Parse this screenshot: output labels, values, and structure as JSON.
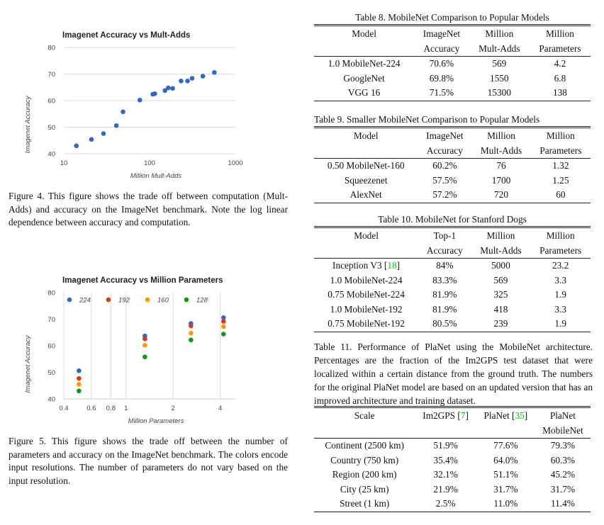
{
  "figure4": {
    "caption": "Figure 4. This figure shows the trade off between computation (Mult-Adds) and accuracy on the ImageNet benchmark. Note the log linear dependence between accuracy and computation.",
    "chart_data": {
      "type": "scatter",
      "title": "Imagenet Accuracy vs Mult-Adds",
      "xlabel": "Million Mult-Adds",
      "ylabel": "Imagenet Accuracy",
      "xscale": "log",
      "xlim": [
        10,
        1000
      ],
      "ylim": [
        40,
        80
      ],
      "xticks": [
        "10",
        "100",
        "1000"
      ],
      "yticks": [
        "40",
        "50",
        "60",
        "70",
        "80"
      ],
      "grid": "horizontal",
      "color": "#3366cc",
      "points": [
        {
          "x": 14,
          "y": 43.0
        },
        {
          "x": 21,
          "y": 45.4
        },
        {
          "x": 29,
          "y": 47.6
        },
        {
          "x": 41,
          "y": 50.6
        },
        {
          "x": 49,
          "y": 55.8
        },
        {
          "x": 77,
          "y": 60.2
        },
        {
          "x": 109,
          "y": 62.4
        },
        {
          "x": 115,
          "y": 62.6
        },
        {
          "x": 151,
          "y": 63.8
        },
        {
          "x": 165,
          "y": 64.8
        },
        {
          "x": 186,
          "y": 64.6
        },
        {
          "x": 233,
          "y": 67.4
        },
        {
          "x": 277,
          "y": 67.4
        },
        {
          "x": 313,
          "y": 68.4
        },
        {
          "x": 418,
          "y": 69.2
        },
        {
          "x": 569,
          "y": 70.6
        }
      ]
    }
  },
  "figure5": {
    "caption": "Figure 5. This figure shows the trade off between the number of parameters and accuracy on the ImageNet benchmark. The colors encode input resolutions. The number of parameters do not vary based on the input resolution.",
    "chart_data": {
      "type": "scatter",
      "title": "Imagenet Accuracy vs Million Parameters",
      "xlabel": "Million Parameters",
      "ylabel": "Imagenet Accuracy",
      "xscale": "log",
      "xlim": [
        0.4,
        5
      ],
      "ylim": [
        40,
        80
      ],
      "xticks": [
        "0.4",
        "0.6",
        "0.8",
        "1",
        "2",
        "4"
      ],
      "yticks": [
        "40",
        "50",
        "60",
        "70",
        "80"
      ],
      "grid": "vertical",
      "legend_position": "top",
      "x": [
        0.5,
        1.32,
        2.6,
        4.2
      ],
      "series": [
        {
          "name": "224",
          "color": "#3366cc",
          "values": [
            50.6,
            63.7,
            68.4,
            70.6
          ]
        },
        {
          "name": "192",
          "color": "#dc3912",
          "values": [
            47.7,
            62.6,
            67.5,
            69.2
          ]
        },
        {
          "name": "160",
          "color": "#ff9900",
          "values": [
            45.5,
            60.2,
            64.8,
            67.2
          ]
        },
        {
          "name": "128",
          "color": "#109618",
          "values": [
            43.0,
            55.8,
            62.2,
            64.4
          ]
        }
      ]
    }
  },
  "table8": {
    "title": "Table 8. MobileNet Comparison to Popular Models",
    "headers": [
      [
        "Model",
        ""
      ],
      [
        "ImageNet",
        "Accuracy"
      ],
      [
        "Million",
        "Mult-Adds"
      ],
      [
        "Million",
        "Parameters"
      ]
    ],
    "rows": [
      [
        "1.0 MobileNet-224",
        "70.6%",
        "569",
        "4.2"
      ],
      [
        "GoogleNet",
        "69.8%",
        "1550",
        "6.8"
      ],
      [
        "VGG 16",
        "71.5%",
        "15300",
        "138"
      ]
    ]
  },
  "table9": {
    "title": "Table 9. Smaller MobileNet Comparison to Popular Models",
    "headers": [
      [
        "Model",
        ""
      ],
      [
        "ImageNet",
        "Accuracy"
      ],
      [
        "Million",
        "Mult-Adds"
      ],
      [
        "Million",
        "Parameters"
      ]
    ],
    "rows": [
      [
        "0.50 MobileNet-160",
        "60.2%",
        "76",
        "1.32"
      ],
      [
        "Squeezenet",
        "57.5%",
        "1700",
        "1.25"
      ],
      [
        "AlexNet",
        "57.2%",
        "720",
        "60"
      ]
    ]
  },
  "table10": {
    "title": "Table 10. MobileNet for Stanford Dogs",
    "headers": [
      [
        "Model",
        ""
      ],
      [
        "Top-1",
        "Accuracy"
      ],
      [
        "Million",
        "Mult-Adds"
      ],
      [
        "Million",
        "Parameters"
      ]
    ],
    "rows": [
      [
        "Inception V3 [18]",
        "84%",
        "5000",
        "23.2"
      ],
      [
        "1.0 MobileNet-224",
        "83.3%",
        "569",
        "3.3"
      ],
      [
        "0.75 MobileNet-224",
        "81.9%",
        "325",
        "1.9"
      ],
      [
        "1.0 MobileNet-192",
        "81.9%",
        "418",
        "3.3"
      ],
      [
        "0.75 MobileNet-192",
        "80.5%",
        "239",
        "1.9"
      ]
    ]
  },
  "table11": {
    "caption": "Table 11. Performance of PlaNet using the MobileNet architecture. Percentages are the fraction of the Im2GPS test dataset that were localized within a certain distance from the ground truth. The numbers for the original PlaNet model are based on an updated version that has an improved architecture and training dataset.",
    "headers": [
      [
        "Scale",
        ""
      ],
      [
        "Im2GPS [7]",
        ""
      ],
      [
        "PlaNet [35]",
        ""
      ],
      [
        "PlaNet",
        "MobileNet"
      ]
    ],
    "rows": [
      [
        "Continent (2500 km)",
        "51.9%",
        "77.6%",
        "79.3%"
      ],
      [
        "Country (750 km)",
        "35.4%",
        "64.0%",
        "60.3%"
      ],
      [
        "Region (200 km)",
        "32.1%",
        "51.1%",
        "45.2%"
      ],
      [
        "City (25 km)",
        "21.9%",
        "31.7%",
        "31.7%"
      ],
      [
        "Street (1 km)",
        "2.5%",
        "11.0%",
        "11.4%"
      ]
    ]
  }
}
